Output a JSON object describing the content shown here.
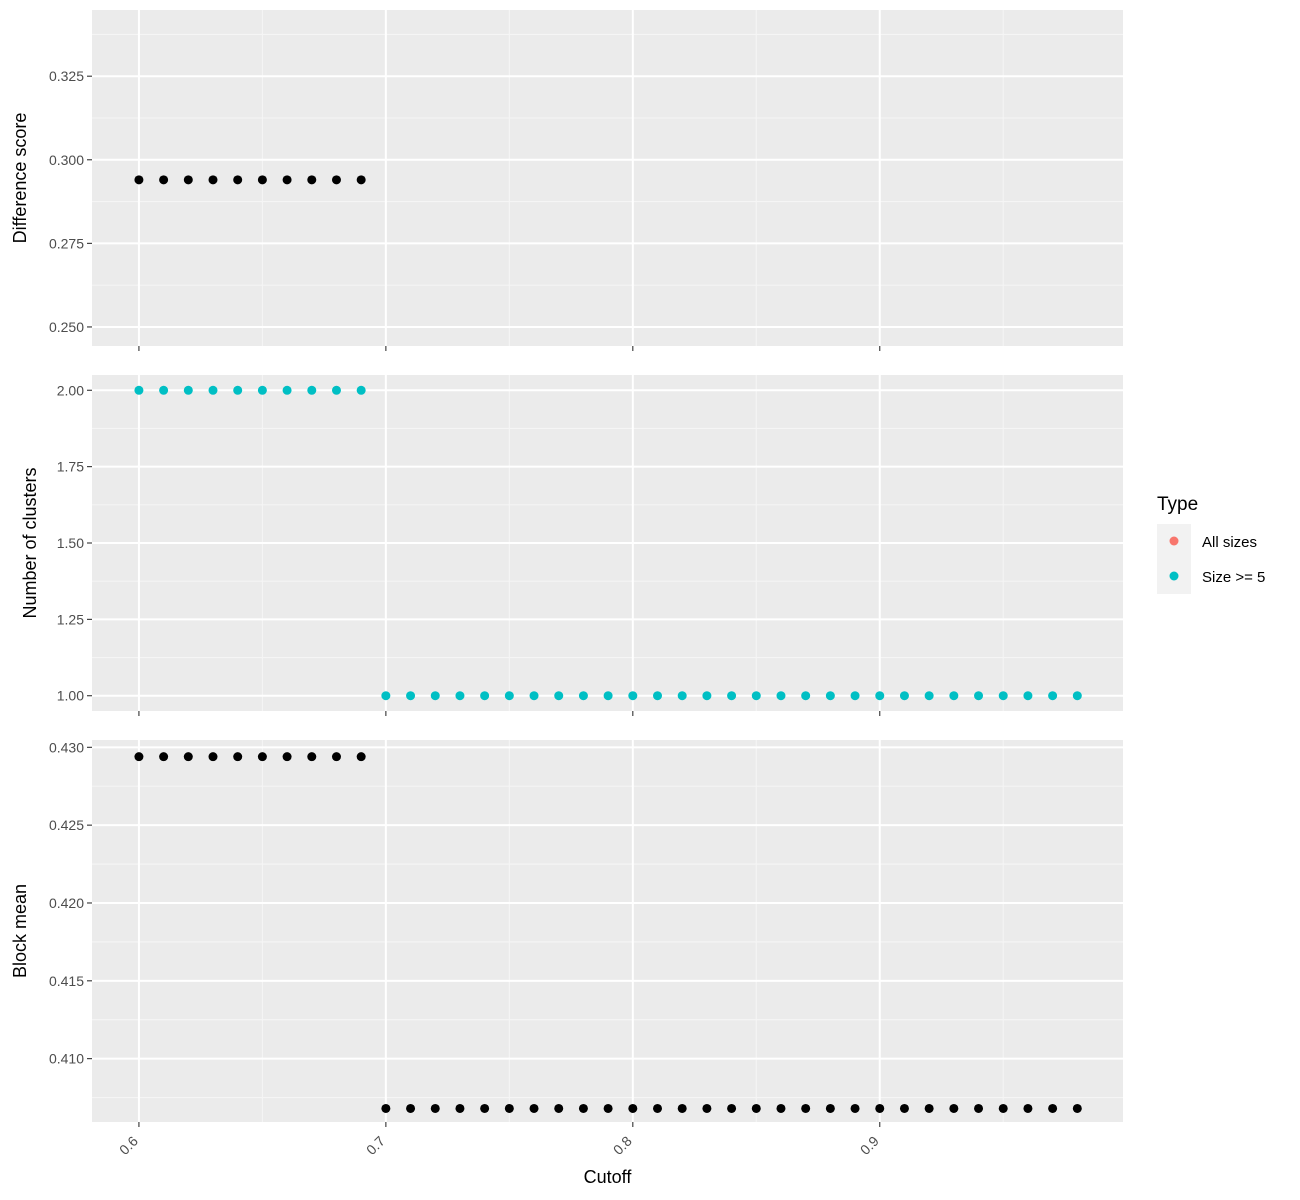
{
  "chart_data": {
    "type": "scatter",
    "xlabel": "Cutoff",
    "x_ticks": [
      0.6,
      0.7,
      0.8,
      0.9
    ],
    "x_tick_labels": [
      "0.6",
      "0.7",
      "0.8",
      "0.9"
    ],
    "xlim": [
      0.581,
      0.9985
    ],
    "legend": {
      "title": "Type",
      "position": "right",
      "entries": [
        {
          "label": "All sizes",
          "color": "#F8766D"
        },
        {
          "label": "Size >= 5",
          "color": "#00BFC4"
        }
      ]
    },
    "panels": [
      {
        "ylabel": "Difference score",
        "ylim": [
          0.2443,
          0.3448
        ],
        "y_ticks": [
          0.25,
          0.275,
          0.3,
          0.325
        ],
        "y_tick_labels": [
          "0.250",
          "0.275",
          "0.300",
          "0.325"
        ],
        "point_color": "#000000",
        "points": {
          "x": [
            0.6,
            0.61,
            0.62,
            0.63,
            0.64,
            0.65,
            0.66,
            0.67,
            0.68,
            0.69
          ],
          "y": [
            0.294,
            0.294,
            0.294,
            0.294,
            0.294,
            0.294,
            0.294,
            0.294,
            0.294,
            0.294
          ]
        }
      },
      {
        "ylabel": "Number of clusters",
        "ylim": [
          0.95,
          2.05
        ],
        "y_ticks": [
          1.0,
          1.25,
          1.5,
          1.75,
          2.0
        ],
        "y_tick_labels": [
          "1.00",
          "1.25",
          "1.50",
          "1.75",
          "2.00"
        ],
        "point_color": "#00BFC4",
        "points": {
          "x": [
            0.6,
            0.61,
            0.62,
            0.63,
            0.64,
            0.65,
            0.66,
            0.67,
            0.68,
            0.69,
            0.7,
            0.71,
            0.72,
            0.73,
            0.74,
            0.75,
            0.76,
            0.77,
            0.78,
            0.79,
            0.8,
            0.81,
            0.82,
            0.83,
            0.84,
            0.85,
            0.86,
            0.87,
            0.88,
            0.89,
            0.9,
            0.91,
            0.92,
            0.93,
            0.94,
            0.95,
            0.96,
            0.97,
            0.98
          ],
          "y": [
            2,
            2,
            2,
            2,
            2,
            2,
            2,
            2,
            2,
            2,
            1,
            1,
            1,
            1,
            1,
            1,
            1,
            1,
            1,
            1,
            1,
            1,
            1,
            1,
            1,
            1,
            1,
            1,
            1,
            1,
            1,
            1,
            1,
            1,
            1,
            1,
            1,
            1,
            1
          ]
        }
      },
      {
        "ylabel": "Block mean",
        "ylim": [
          0.40593,
          0.43047
        ],
        "y_ticks": [
          0.41,
          0.415,
          0.42,
          0.425,
          0.43
        ],
        "y_tick_labels": [
          "0.410",
          "0.415",
          "0.420",
          "0.425",
          "0.430"
        ],
        "point_color": "#000000",
        "points": {
          "x": [
            0.6,
            0.61,
            0.62,
            0.63,
            0.64,
            0.65,
            0.66,
            0.67,
            0.68,
            0.69,
            0.7,
            0.71,
            0.72,
            0.73,
            0.74,
            0.75,
            0.76,
            0.77,
            0.78,
            0.79,
            0.8,
            0.81,
            0.82,
            0.83,
            0.84,
            0.85,
            0.86,
            0.87,
            0.88,
            0.89,
            0.9,
            0.91,
            0.92,
            0.93,
            0.94,
            0.95,
            0.96,
            0.97,
            0.98
          ],
          "y": [
            0.4294,
            0.4294,
            0.4294,
            0.4294,
            0.4294,
            0.4294,
            0.4294,
            0.4294,
            0.4294,
            0.4294,
            0.4068,
            0.4068,
            0.4068,
            0.4068,
            0.4068,
            0.4068,
            0.4068,
            0.4068,
            0.4068,
            0.4068,
            0.4068,
            0.4068,
            0.4068,
            0.4068,
            0.4068,
            0.4068,
            0.4068,
            0.4068,
            0.4068,
            0.4068,
            0.4068,
            0.4068,
            0.4068,
            0.4068,
            0.4068,
            0.4068,
            0.4068,
            0.4068,
            0.4068
          ]
        }
      }
    ]
  }
}
